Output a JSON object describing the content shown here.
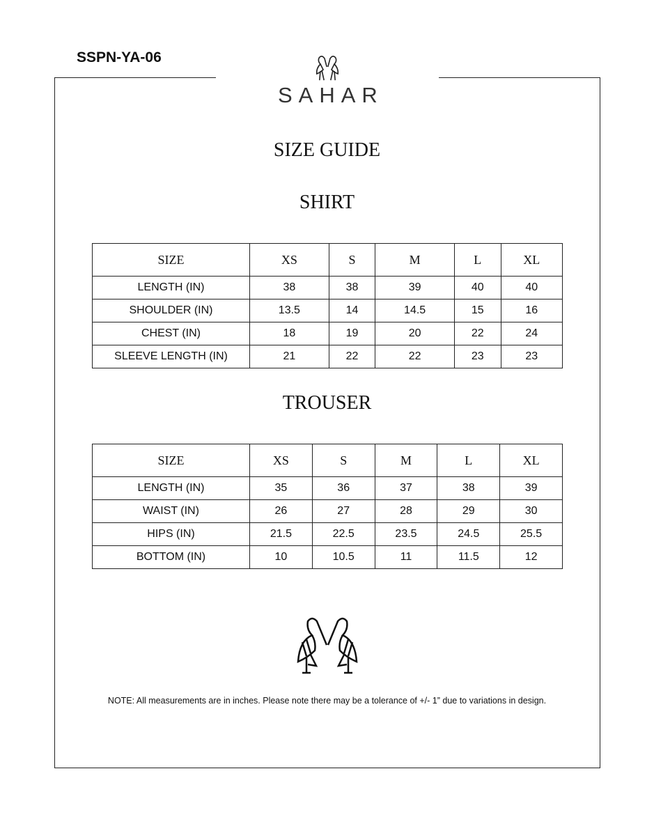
{
  "code": "SSPN-YA-06",
  "brand": "SAHAR",
  "title": "SIZE GUIDE",
  "shirt": {
    "title": "SHIRT",
    "header": [
      "SIZE",
      "XS",
      "S",
      "M",
      "L",
      "XL"
    ],
    "rows": [
      [
        "LENGTH (IN)",
        "38",
        "38",
        "39",
        "40",
        "40"
      ],
      [
        "SHOULDER (IN)",
        "13.5",
        "14",
        "14.5",
        "15",
        "16"
      ],
      [
        "CHEST (IN)",
        "18",
        "19",
        "20",
        "22",
        "24"
      ],
      [
        "SLEEVE LENGTH (IN)",
        "21",
        "22",
        "22",
        "23",
        "23"
      ]
    ]
  },
  "trouser": {
    "title": "TROUSER",
    "header": [
      "SIZE",
      "XS",
      "S",
      "M",
      "L",
      "XL"
    ],
    "rows": [
      [
        "LENGTH (IN)",
        "35",
        "36",
        "37",
        "38",
        "39"
      ],
      [
        "WAIST (IN)",
        "26",
        "27",
        "28",
        "29",
        "30"
      ],
      [
        "HIPS (IN)",
        "21.5",
        "22.5",
        "23.5",
        "24.5",
        "25.5"
      ],
      [
        "BOTTOM (IN)",
        "10",
        "10.5",
        "11",
        "11.5",
        "12"
      ]
    ]
  },
  "note": "NOTE: All measurements are in inches. Please note there may be a tolerance of +/- 1” due to variations in design."
}
